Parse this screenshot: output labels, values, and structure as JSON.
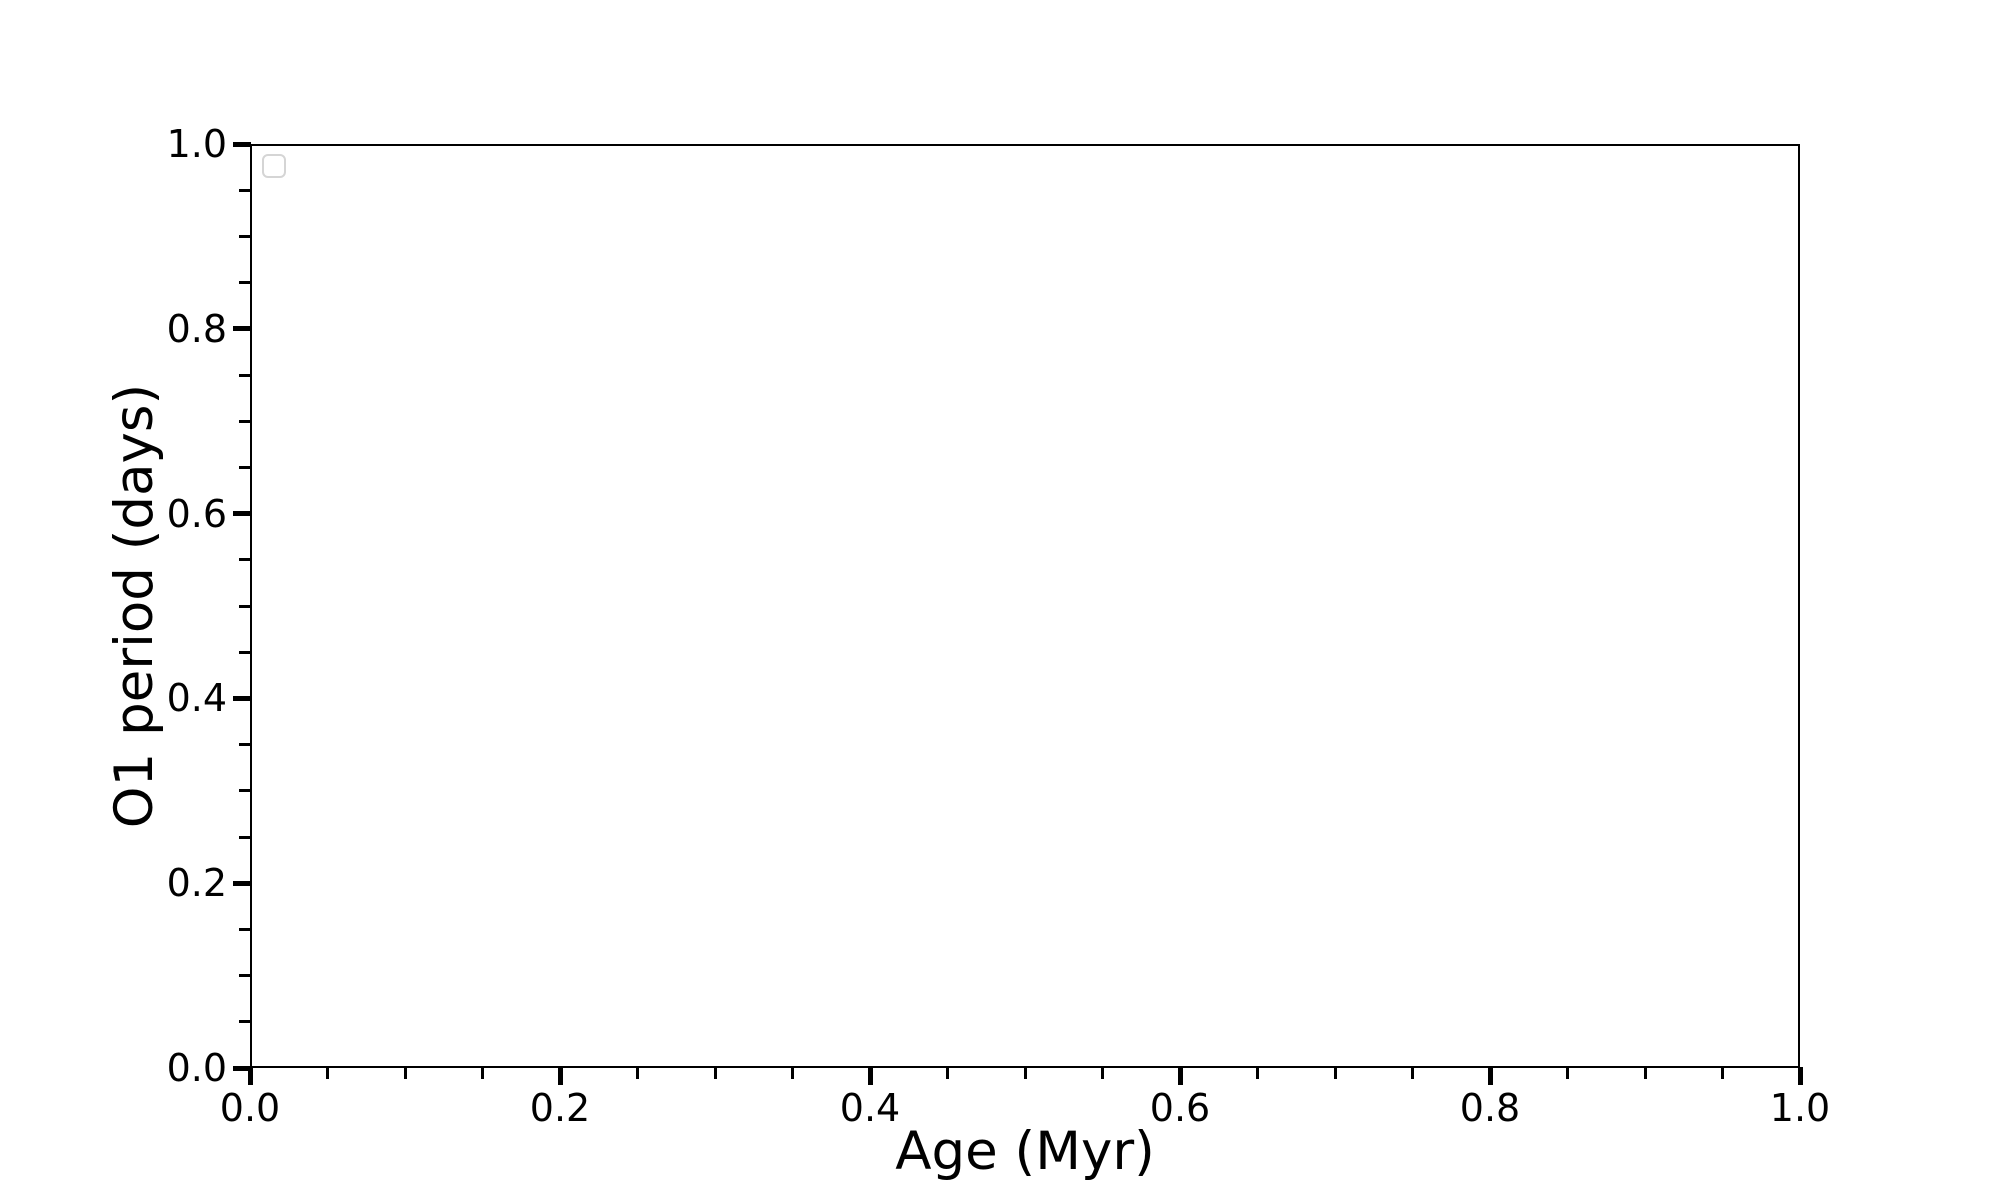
{
  "chart_data": {
    "type": "scatter",
    "title": "",
    "xlabel": "Age (Myr)",
    "ylabel": "O1 period (days)",
    "xlim": [
      0.0,
      1.0
    ],
    "ylim": [
      0.0,
      1.0
    ],
    "x_major_ticks": [
      0.0,
      0.2,
      0.4,
      0.6,
      0.8,
      1.0
    ],
    "x_tick_labels": [
      "0.0",
      "0.2",
      "0.4",
      "0.6",
      "0.8",
      "1.0"
    ],
    "y_major_ticks": [
      0.0,
      0.2,
      0.4,
      0.6,
      0.8,
      1.0
    ],
    "y_tick_labels": [
      "0.0",
      "0.2",
      "0.4",
      "0.6",
      "0.8",
      "1.0"
    ],
    "minor_tick_interval": 0.05,
    "grid": false,
    "legend": {
      "visible": true,
      "location": "upper left",
      "entries": []
    },
    "series": []
  },
  "colors": {
    "background": "#ffffff",
    "spine": "#000000",
    "tick": "#000000",
    "text": "#000000",
    "legend_border": "#d5d5d5",
    "legend_fill": "#ffffff"
  }
}
